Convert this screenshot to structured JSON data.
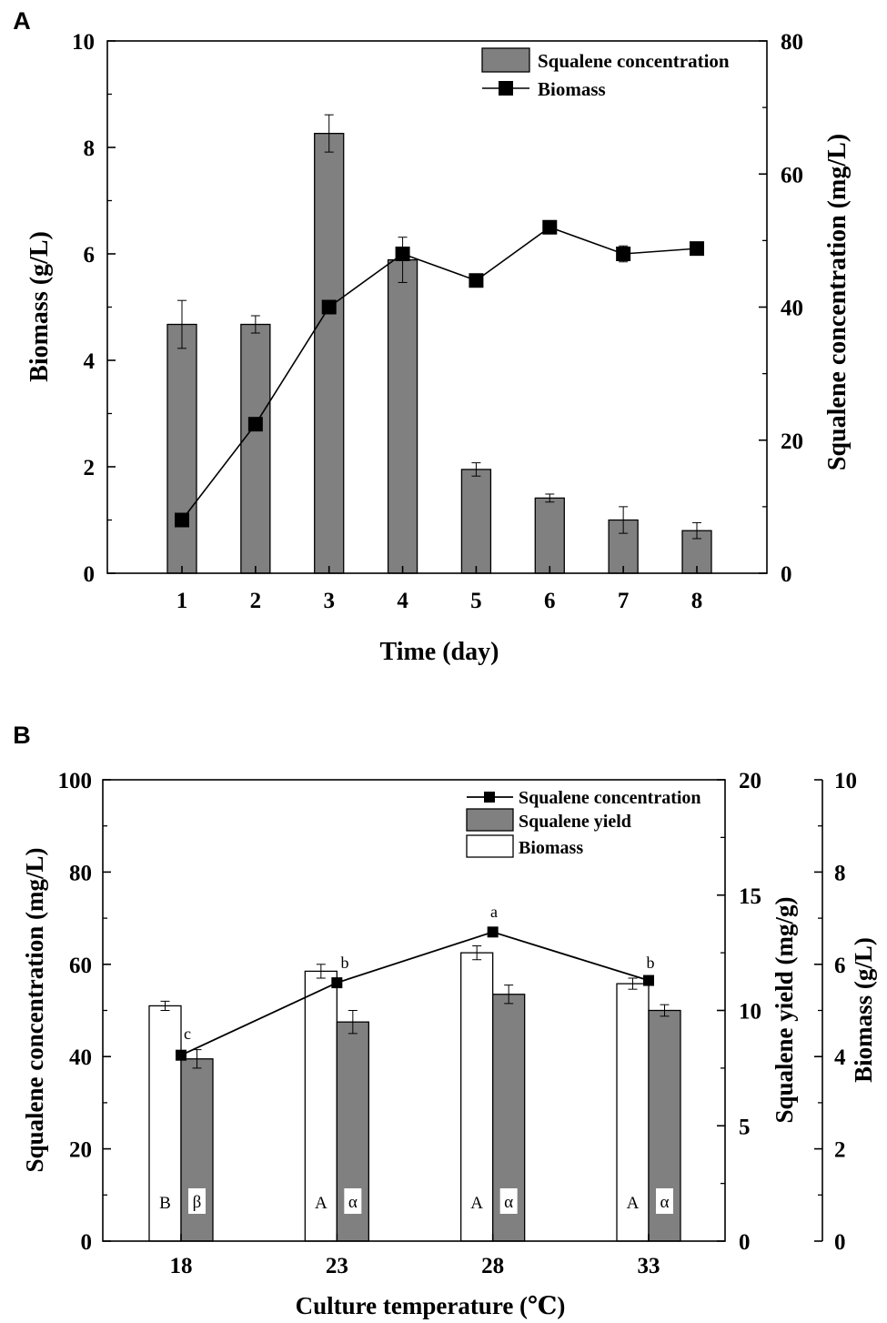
{
  "chart_data": [
    {
      "panel_label": "A",
      "type": "bar+line",
      "title": "",
      "xlabel": "Time (day)",
      "ylabel_left": "Biomass (g/L)",
      "ylabel_right": "Squalene concentration (mg/L)",
      "categories": [
        "1",
        "2",
        "3",
        "4",
        "5",
        "6",
        "7",
        "8"
      ],
      "ylim_left": [
        0,
        10
      ],
      "ylim_right": [
        0,
        80
      ],
      "yticks_left": [
        "0",
        "2",
        "4",
        "6",
        "8",
        "10"
      ],
      "yticks_right": [
        "0",
        "20",
        "40",
        "60",
        "80"
      ],
      "series": [
        {
          "name": "Squalene concentration",
          "kind": "bar",
          "axis": "right",
          "color": "#808080",
          "values": [
            37.4,
            37.4,
            66.1,
            47.1,
            15.6,
            11.3,
            8.0,
            6.4
          ],
          "errors": [
            3.6,
            1.3,
            2.8,
            3.4,
            1.0,
            0.6,
            2.0,
            1.2
          ]
        },
        {
          "name": "Biomass",
          "kind": "line",
          "axis": "left",
          "color": "#000000",
          "values": [
            1.0,
            2.8,
            5.0,
            6.0,
            5.5,
            6.5,
            6.0,
            6.1
          ],
          "errors": [
            0.0,
            0.0,
            0.0,
            0.1,
            0.1,
            0.0,
            0.15,
            0.05
          ]
        }
      ],
      "legend_position": "top-right"
    },
    {
      "panel_label": "B",
      "type": "bar+line",
      "title": "",
      "xlabel": "Culture temperature (℃)",
      "ylabel_left": "Squalene concentration (mg/L)",
      "ylabel_right1": "Squalene yield (mg/g)",
      "ylabel_right2": "Biomass (g/L)",
      "categories": [
        "18",
        "23",
        "28",
        "33"
      ],
      "ylim_left": [
        0,
        100
      ],
      "ylim_right1": [
        0,
        20
      ],
      "ylim_right2": [
        0,
        10
      ],
      "yticks_left": [
        "0",
        "20",
        "40",
        "60",
        "80",
        "100"
      ],
      "yticks_right1": [
        "0",
        "5",
        "10",
        "15",
        "20"
      ],
      "yticks_right2": [
        "0",
        "2",
        "4",
        "6",
        "8",
        "10"
      ],
      "series": [
        {
          "name": "Squalene concentration",
          "kind": "line",
          "axis": "left",
          "color": "#000000",
          "values": [
            40.3,
            56.0,
            67.0,
            56.5
          ],
          "sig_labels": [
            "c",
            "b",
            "a",
            "b"
          ]
        },
        {
          "name": "Squalene yield",
          "kind": "bar",
          "axis": "right1",
          "color": "#808080",
          "values": [
            7.9,
            9.5,
            10.7,
            10.0
          ],
          "errors": [
            0.4,
            0.5,
            0.4,
            0.25
          ],
          "sig_labels": [
            "β",
            "α",
            "α",
            "α"
          ]
        },
        {
          "name": "Biomass",
          "kind": "bar",
          "axis": "right2",
          "color": "#ffffff",
          "values": [
            5.1,
            5.85,
            6.25,
            5.58
          ],
          "errors": [
            0.1,
            0.15,
            0.15,
            0.12
          ],
          "sig_labels": [
            "B",
            "A",
            "A",
            "A"
          ]
        }
      ],
      "legend_position": "top-right"
    }
  ]
}
